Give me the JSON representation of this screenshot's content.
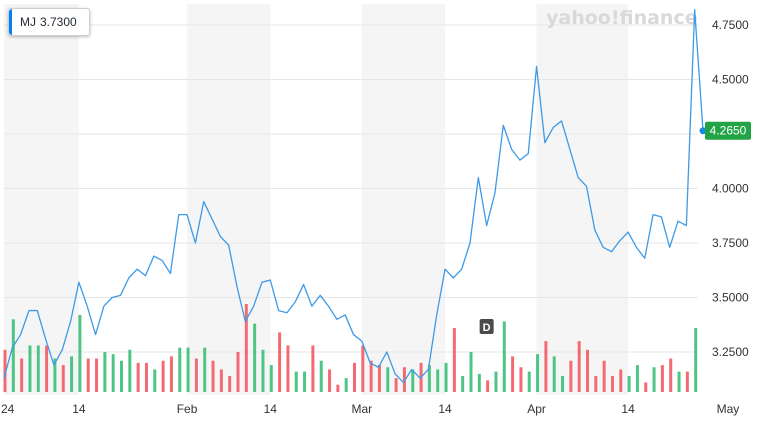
{
  "legend": {
    "symbol": "MJ",
    "value": "3.7300"
  },
  "watermark": "yahoo!finance",
  "current_price_label": "4.2650",
  "dividend_marker": "D",
  "colors": {
    "line": "#3d9ae8",
    "up_volume": "#4fc585",
    "down_volume": "#f26b73",
    "price_tag": "#21a446",
    "shade": "#f5f5f5",
    "grid": "#e6e6e6",
    "legend_accent": "#0081f2"
  },
  "chart_data": {
    "type": "line",
    "title": "",
    "xlabel": "",
    "ylabel": "",
    "ylim": [
      3.05,
      4.85
    ],
    "yticks": [
      "3.2500",
      "3.5000",
      "3.7500",
      "4.0000",
      "4.2500",
      "4.5000",
      "4.7500"
    ],
    "xticks": [
      {
        "label": "24",
        "index": 0
      },
      {
        "label": "14",
        "index": 9
      },
      {
        "label": "Feb",
        "index": 22
      },
      {
        "label": "14",
        "index": 32
      },
      {
        "label": "Mar",
        "index": 43
      },
      {
        "label": "14",
        "index": 53
      },
      {
        "label": "Apr",
        "index": 64
      },
      {
        "label": "14",
        "index": 75
      },
      {
        "label": "May",
        "index": 87
      }
    ],
    "series": [
      {
        "name": "MJ",
        "values": [
          3.13,
          3.27,
          3.33,
          3.44,
          3.44,
          3.31,
          3.19,
          3.26,
          3.39,
          3.57,
          3.46,
          3.33,
          3.46,
          3.5,
          3.51,
          3.59,
          3.63,
          3.6,
          3.69,
          3.67,
          3.61,
          3.88,
          3.88,
          3.75,
          3.94,
          3.86,
          3.78,
          3.74,
          3.55,
          3.39,
          3.46,
          3.57,
          3.58,
          3.44,
          3.43,
          3.48,
          3.56,
          3.46,
          3.51,
          3.46,
          3.4,
          3.42,
          3.33,
          3.3,
          3.2,
          3.18,
          3.25,
          3.15,
          3.11,
          3.17,
          3.13,
          3.17,
          3.42,
          3.63,
          3.59,
          3.63,
          3.75,
          4.05,
          3.83,
          3.98,
          4.29,
          4.18,
          4.13,
          4.16,
          4.56,
          4.21,
          4.28,
          4.31,
          4.18,
          4.05,
          4.01,
          3.81,
          3.73,
          3.71,
          3.76,
          3.8,
          3.73,
          3.68,
          3.88,
          3.87,
          3.73,
          3.85,
          3.83,
          4.82,
          4.265
        ]
      }
    ],
    "volume": [
      3.26,
      3.4,
      3.22,
      3.28,
      3.28,
      3.28,
      3.22,
      3.19,
      3.23,
      3.42,
      3.22,
      3.22,
      3.25,
      3.24,
      3.21,
      3.26,
      3.2,
      3.2,
      3.17,
      3.21,
      3.23,
      3.27,
      3.27,
      3.22,
      3.27,
      3.21,
      3.17,
      3.14,
      3.25,
      3.47,
      3.38,
      3.26,
      3.19,
      3.34,
      3.28,
      3.16,
      3.16,
      3.28,
      3.21,
      3.17,
      3.1,
      3.13,
      3.2,
      3.28,
      3.21,
      3.19,
      3.18,
      3.13,
      3.18,
      3.17,
      3.2,
      3.19,
      3.17,
      3.2,
      3.36,
      3.14,
      3.25,
      3.15,
      3.12,
      3.16,
      3.39,
      3.23,
      3.18,
      3.16,
      3.24,
      3.3,
      3.23,
      3.14,
      3.21,
      3.3,
      3.26,
      3.14,
      3.21,
      3.14,
      3.17,
      3.14,
      3.19,
      3.11,
      3.18,
      3.19,
      3.22,
      3.16,
      3.16,
      3.36
    ],
    "volume_up": [
      false,
      true,
      false,
      true,
      true,
      false,
      true,
      false,
      true,
      true,
      false,
      false,
      true,
      true,
      true,
      true,
      false,
      false,
      true,
      false,
      false,
      true,
      true,
      false,
      true,
      false,
      false,
      false,
      false,
      false,
      true,
      true,
      true,
      false,
      false,
      true,
      true,
      false,
      true,
      false,
      false,
      true,
      false,
      false,
      false,
      false,
      true,
      false,
      false,
      true,
      false,
      true,
      true,
      true,
      false,
      true,
      true,
      true,
      false,
      true,
      true,
      false,
      false,
      true,
      true,
      false,
      true,
      true,
      false,
      false,
      false,
      false,
      false,
      false,
      false,
      true,
      true,
      false,
      true,
      false,
      false,
      true,
      false,
      true
    ],
    "dividend_index": 58
  }
}
